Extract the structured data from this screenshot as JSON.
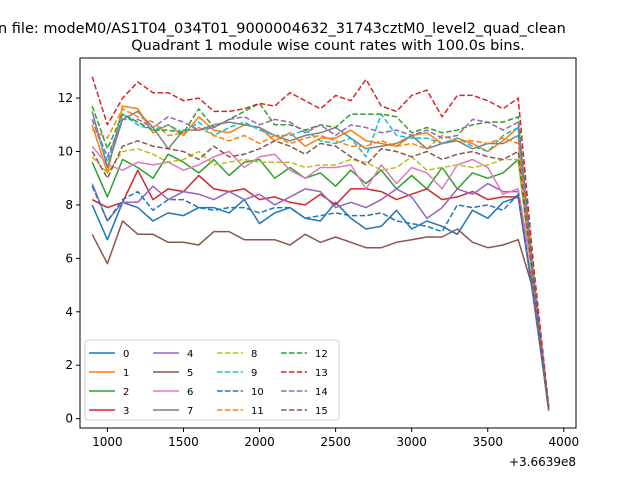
{
  "figure": {
    "suptitle": "n file: modeM0/AS1T04_034T01_9000004632_31743cztM0_level2_quad_clean",
    "offset_label": "+3.6639e8"
  },
  "chart_data": {
    "type": "line",
    "title": "Quadrant 1 module wise count rates with 100.0s bins.",
    "xlabel": "",
    "ylabel": "",
    "xlim": [
      820,
      4080
    ],
    "ylim": [
      -0.35,
      13.5
    ],
    "xticks": [
      1000,
      1500,
      2000,
      2500,
      3000,
      3500,
      4000
    ],
    "yticks": [
      0,
      2,
      4,
      6,
      8,
      10,
      12
    ],
    "grid": false,
    "legend": {
      "position": "lower-left",
      "columns": 4
    },
    "x": [
      900,
      1000,
      1100,
      1200,
      1300,
      1400,
      1500,
      1600,
      1700,
      1800,
      1900,
      2000,
      2100,
      2200,
      2300,
      2400,
      2500,
      2600,
      2700,
      2800,
      2900,
      3000,
      3100,
      3200,
      3300,
      3400,
      3500,
      3600,
      3700,
      3800,
      3900
    ],
    "series": [
      {
        "name": "0",
        "color": "#1f77b4",
        "dash": "solid",
        "values": [
          8.0,
          6.7,
          8.1,
          7.9,
          7.4,
          7.7,
          7.6,
          7.9,
          7.9,
          7.7,
          8.2,
          7.3,
          7.7,
          7.9,
          7.5,
          7.4,
          8.1,
          7.5,
          7.1,
          7.2,
          7.8,
          7.1,
          7.4,
          7.2,
          6.9,
          7.8,
          7.5,
          8.1,
          8.3,
          4.5,
          0.4
        ]
      },
      {
        "name": "1",
        "color": "#ff7f0e",
        "dash": "solid",
        "values": [
          11.0,
          9.2,
          11.7,
          11.6,
          10.7,
          11.0,
          10.6,
          11.3,
          10.8,
          10.7,
          11.0,
          10.9,
          10.4,
          10.7,
          10.2,
          10.5,
          10.5,
          10.8,
          10.4,
          10.3,
          10.2,
          10.6,
          10.7,
          10.3,
          10.5,
          10.3,
          10.0,
          10.4,
          10.9,
          5.2,
          0.45
        ]
      },
      {
        "name": "2",
        "color": "#2ca02c",
        "dash": "solid",
        "values": [
          9.6,
          8.3,
          9.7,
          9.4,
          9.0,
          9.9,
          9.6,
          9.2,
          9.7,
          9.1,
          9.6,
          9.7,
          9.0,
          9.4,
          9.0,
          9.2,
          8.7,
          9.3,
          8.8,
          9.3,
          8.6,
          9.1,
          8.6,
          9.4,
          8.6,
          9.2,
          9.0,
          9.2,
          9.7,
          5.0,
          0.4
        ]
      },
      {
        "name": "3",
        "color": "#d62728",
        "dash": "solid",
        "values": [
          8.2,
          7.9,
          8.1,
          9.3,
          8.2,
          8.6,
          8.5,
          9.1,
          8.6,
          8.5,
          8.6,
          8.2,
          8.3,
          8.1,
          8.0,
          8.4,
          8.0,
          8.6,
          8.6,
          8.5,
          8.2,
          8.4,
          8.6,
          8.2,
          8.3,
          8.5,
          8.2,
          8.3,
          8.3,
          4.7,
          0.35
        ]
      },
      {
        "name": "4",
        "color": "#9467bd",
        "dash": "solid",
        "values": [
          8.8,
          7.4,
          8.1,
          8.1,
          8.7,
          8.2,
          8.5,
          8.4,
          8.2,
          8.5,
          8.2,
          8.4,
          8.0,
          8.3,
          8.6,
          8.5,
          7.9,
          8.1,
          7.9,
          8.2,
          8.6,
          8.3,
          7.5,
          7.9,
          8.6,
          8.4,
          8.8,
          8.5,
          8.5,
          4.5,
          0.4
        ]
      },
      {
        "name": "5",
        "color": "#8c564b",
        "dash": "solid",
        "values": [
          6.9,
          5.8,
          7.4,
          6.9,
          6.9,
          6.6,
          6.6,
          6.5,
          7.0,
          7.0,
          6.7,
          6.7,
          6.7,
          6.5,
          6.9,
          6.6,
          6.8,
          6.6,
          6.4,
          6.4,
          6.6,
          6.7,
          6.8,
          6.8,
          7.1,
          6.6,
          6.4,
          6.5,
          6.7,
          4.8,
          0.3
        ]
      },
      {
        "name": "6",
        "color": "#e377c2",
        "dash": "solid",
        "values": [
          10.2,
          9.5,
          9.3,
          9.6,
          9.5,
          9.6,
          9.3,
          9.5,
          9.8,
          10.0,
          9.4,
          9.8,
          9.9,
          9.3,
          9.0,
          9.4,
          9.4,
          9.5,
          8.6,
          9.5,
          8.8,
          9.4,
          9.2,
          8.6,
          9.5,
          9.7,
          9.4,
          8.4,
          8.6,
          5.2,
          0.4
        ]
      },
      {
        "name": "7",
        "color": "#7f7f7f",
        "dash": "solid",
        "values": [
          11.5,
          9.4,
          11.2,
          11.5,
          10.9,
          10.1,
          10.8,
          10.8,
          11.0,
          11.1,
          11.0,
          10.9,
          10.6,
          10.4,
          10.6,
          10.7,
          10.9,
          10.5,
          10.1,
          10.2,
          10.3,
          10.6,
          10.1,
          10.3,
          10.4,
          10.1,
          10.3,
          10.3,
          10.6,
          5.3,
          0.45
        ]
      },
      {
        "name": "8",
        "color": "#bcbd22",
        "dash": "dashed",
        "values": [
          9.8,
          9.2,
          10.0,
          10.1,
          9.9,
          9.6,
          9.7,
          10.0,
          9.5,
          9.6,
          9.7,
          9.6,
          9.6,
          9.6,
          9.4,
          9.5,
          9.5,
          9.7,
          9.6,
          9.3,
          9.4,
          9.8,
          9.3,
          9.4,
          9.5,
          9.4,
          9.5,
          9.7,
          9.7,
          5.0,
          0.4
        ]
      },
      {
        "name": "9",
        "color": "#17becf",
        "dash": "dashed",
        "values": [
          11.2,
          9.6,
          11.4,
          11.0,
          10.8,
          11.0,
          10.7,
          11.1,
          10.6,
          10.9,
          11.1,
          10.8,
          10.6,
          10.6,
          10.8,
          10.4,
          10.3,
          10.5,
          9.8,
          11.4,
          10.6,
          10.5,
          10.5,
          10.3,
          10.5,
          10.2,
          10.0,
          10.6,
          10.9,
          5.1,
          0.45
        ]
      },
      {
        "name": "10",
        "color": "#1f77b4",
        "dash": "dashed",
        "values": [
          8.7,
          7.4,
          8.2,
          8.5,
          7.8,
          8.2,
          8.2,
          7.9,
          7.8,
          7.9,
          7.9,
          7.7,
          7.9,
          7.9,
          7.5,
          7.6,
          7.7,
          7.6,
          7.6,
          7.7,
          7.4,
          7.3,
          7.2,
          7.0,
          8.0,
          7.9,
          8.0,
          7.8,
          8.4,
          4.6,
          0.35
        ]
      },
      {
        "name": "11",
        "color": "#ff7f0e",
        "dash": "dashed",
        "values": [
          10.8,
          10.5,
          11.6,
          11.3,
          11.1,
          10.6,
          10.7,
          10.9,
          10.6,
          10.4,
          10.6,
          10.3,
          10.6,
          10.3,
          10.5,
          10.6,
          10.4,
          10.2,
          10.2,
          10.4,
          10.2,
          10.3,
          10.1,
          10.6,
          10.4,
          10.4,
          10.3,
          10.5,
          10.3,
          5.3,
          0.45
        ]
      },
      {
        "name": "12",
        "color": "#2ca02c",
        "dash": "dashed",
        "values": [
          11.7,
          10.1,
          11.4,
          11.1,
          10.8,
          10.8,
          10.7,
          11.6,
          10.9,
          11.2,
          11.5,
          11.8,
          11.0,
          11.0,
          10.8,
          11.0,
          10.9,
          11.4,
          11.4,
          11.4,
          11.3,
          10.7,
          10.9,
          10.7,
          10.8,
          11.0,
          11.1,
          11.1,
          11.3,
          5.4,
          0.45
        ]
      },
      {
        "name": "13",
        "color": "#d62728",
        "dash": "dashed",
        "values": [
          12.8,
          11.0,
          12.0,
          12.6,
          12.2,
          12.2,
          11.9,
          12.0,
          11.5,
          11.5,
          11.6,
          11.8,
          11.7,
          12.2,
          11.9,
          11.6,
          12.1,
          11.9,
          12.7,
          11.7,
          11.5,
          12.1,
          12.3,
          11.3,
          12.1,
          12.1,
          11.9,
          11.6,
          12.0,
          5.8,
          0.5
        ]
      },
      {
        "name": "14",
        "color": "#9467bd",
        "dash": "dashed",
        "values": [
          11.2,
          9.8,
          11.2,
          11.2,
          10.9,
          11.3,
          11.1,
          10.8,
          10.9,
          11.2,
          11.3,
          11.0,
          11.2,
          11.1,
          10.7,
          11.0,
          10.6,
          11.0,
          10.9,
          10.7,
          10.8,
          10.6,
          10.8,
          10.5,
          10.6,
          11.2,
          11.1,
          10.8,
          11.1,
          5.4,
          0.45
        ]
      },
      {
        "name": "15",
        "color": "#8c564b",
        "dash": "dashed",
        "values": [
          10.0,
          9.0,
          10.2,
          10.4,
          10.2,
          10.1,
          10.0,
          9.7,
          10.2,
          9.8,
          9.9,
          10.1,
          10.4,
          10.2,
          9.9,
          10.3,
          10.2,
          9.8,
          9.5,
          10.1,
          10.0,
          9.8,
          10.0,
          9.7,
          9.9,
          10.0,
          9.8,
          9.7,
          10.0,
          5.1,
          0.4
        ]
      }
    ]
  }
}
